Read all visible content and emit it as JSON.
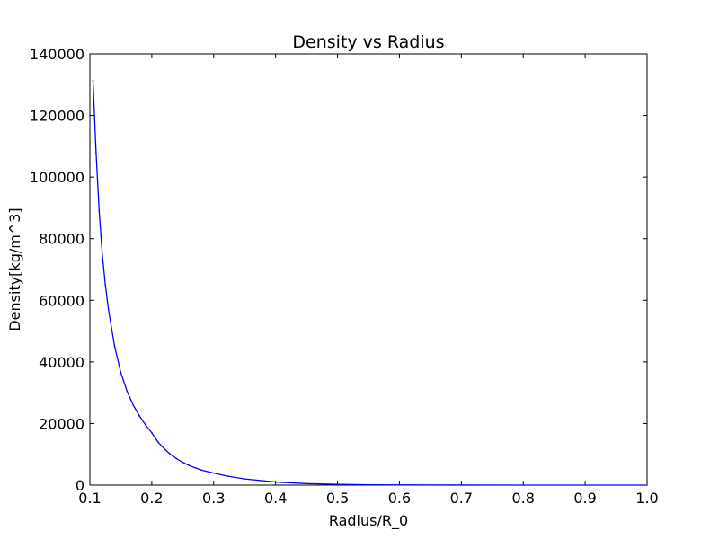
{
  "chart_data": {
    "type": "line",
    "title": "Density vs Radius",
    "xlabel": "Radius/R_0",
    "ylabel": "Density[kg/m^3]",
    "xlim": [
      0.1,
      1.0
    ],
    "ylim": [
      0,
      140000
    ],
    "xticks": [
      "0.1",
      "0.2",
      "0.3",
      "0.4",
      "0.5",
      "0.6",
      "0.7",
      "0.8",
      "0.9",
      "1.0"
    ],
    "yticks": [
      "0",
      "20000",
      "40000",
      "60000",
      "80000",
      "100000",
      "120000",
      "140000"
    ],
    "grid": false,
    "legend": false,
    "series": [
      {
        "color": "#0000ff",
        "x": [
          0.105,
          0.11,
          0.115,
          0.12,
          0.125,
          0.13,
          0.14,
          0.15,
          0.16,
          0.17,
          0.18,
          0.19,
          0.2,
          0.21,
          0.22,
          0.23,
          0.24,
          0.25,
          0.26,
          0.27,
          0.28,
          0.3,
          0.32,
          0.35,
          0.4,
          0.45,
          0.5,
          0.55,
          0.6,
          0.7,
          0.8,
          0.9,
          1.0
        ],
        "y": [
          131500,
          108000,
          89000,
          75000,
          65000,
          57000,
          45000,
          36500,
          30500,
          26000,
          22500,
          19500,
          17000,
          14000,
          11800,
          10000,
          8600,
          7400,
          6400,
          5600,
          4900,
          3900,
          3000,
          2000,
          1000,
          500,
          250,
          120,
          60,
          20,
          8,
          3,
          1
        ]
      }
    ]
  }
}
